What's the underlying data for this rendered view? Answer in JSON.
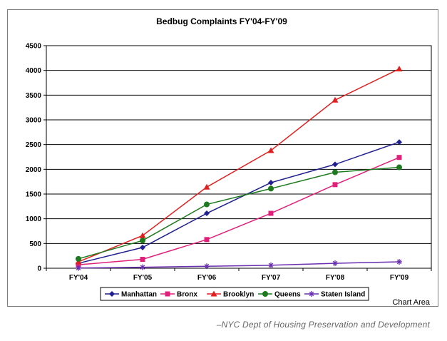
{
  "chart_data": {
    "type": "line",
    "title": "Bedbug Complaints FY'04-FY'09",
    "xlabel": "",
    "ylabel": "",
    "categories": [
      "FY'04",
      "FY'05",
      "FY'06",
      "FY'07",
      "FY'08",
      "FY'09"
    ],
    "ylim": [
      0,
      4500
    ],
    "yticks": [
      0,
      500,
      1000,
      1500,
      2000,
      2500,
      3000,
      3500,
      4000,
      4500
    ],
    "grid": true,
    "legend_position": "bottom",
    "series": [
      {
        "name": "Manhattan",
        "values": [
          100,
          420,
          1110,
          1730,
          2100,
          2550
        ],
        "color": "#1f1f8f",
        "marker": "diamond"
      },
      {
        "name": "Bronx",
        "values": [
          70,
          180,
          580,
          1110,
          1690,
          2240
        ],
        "color": "#e0207a",
        "marker": "square"
      },
      {
        "name": "Brooklyn",
        "values": [
          130,
          660,
          1640,
          2380,
          3400,
          4030
        ],
        "color": "#e02020",
        "marker": "triangle"
      },
      {
        "name": "Queens",
        "values": [
          190,
          560,
          1290,
          1610,
          1940,
          2040
        ],
        "color": "#1e7a1e",
        "marker": "circle"
      },
      {
        "name": "Staten Island",
        "values": [
          5,
          20,
          40,
          60,
          100,
          130
        ],
        "color": "#6a2fb0",
        "marker": "star"
      }
    ]
  },
  "chart_area_label": "Chart Area",
  "source_note": "–NYC Dept of Housing Preservation and Development"
}
